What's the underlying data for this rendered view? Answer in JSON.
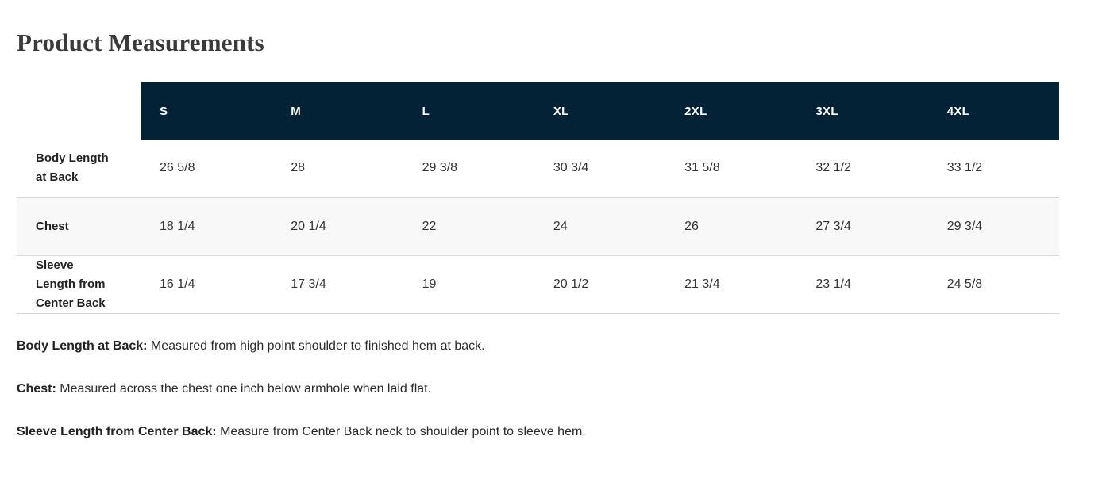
{
  "page": {
    "title": "Product Measurements"
  },
  "table": {
    "columns": [
      "S",
      "M",
      "L",
      "XL",
      "2XL",
      "3XL",
      "4XL"
    ],
    "rows": [
      {
        "label": "Body Length at Back",
        "values": [
          "26 5/8",
          "28",
          "29 3/8",
          "30 3/4",
          "31 5/8",
          "32 1/2",
          "33 1/2"
        ]
      },
      {
        "label": "Chest",
        "values": [
          "18 1/4",
          "20 1/4",
          "22",
          "24",
          "26",
          "27 3/4",
          "29 3/4"
        ]
      },
      {
        "label": "Sleeve Length from Center Back",
        "values": [
          "16 1/4",
          "17 3/4",
          "19",
          "20 1/2",
          "21 3/4",
          "23 1/4",
          "24 5/8"
        ]
      }
    ]
  },
  "notes": [
    {
      "term": "Body Length at Back:",
      "definition": "Measured from high point shoulder to finished hem at back."
    },
    {
      "term": "Chest:",
      "definition": "Measured across the chest one inch below armhole when laid flat."
    },
    {
      "term": "Sleeve Length from Center Back:",
      "definition": "Measure from Center Back neck to shoulder point to sleeve hem."
    }
  ],
  "colors": {
    "header_bg": "#032236",
    "header_text": "#ffffff",
    "stripe_bg": "#f8f8f8",
    "row_border": "#d8d8d8",
    "body_text": "#2e2e2e"
  }
}
